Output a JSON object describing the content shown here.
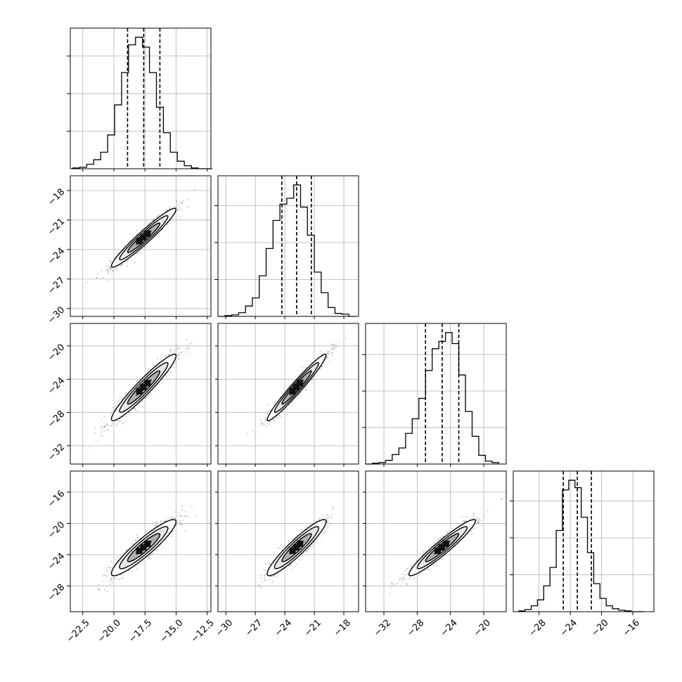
{
  "chart_data": {
    "type": "corner",
    "grid": true,
    "legend": "none",
    "colors": {
      "line": "#000000",
      "grid": "#b0b0b0",
      "points": "#666666"
    },
    "params": [
      {
        "range": [
          -23.5,
          -12.2
        ],
        "ticks": [
          -22.5,
          -20.0,
          -17.5,
          -15.0,
          -12.5
        ],
        "tick_labels": [
          "−22.5",
          "−20.0",
          "−17.5",
          "−15.0",
          "−12.5"
        ],
        "median": -17.6,
        "q16": -18.9,
        "q84": -16.3
      },
      {
        "range": [
          -30.8,
          -16.5
        ],
        "ticks": [
          -30,
          -27,
          -24,
          -21,
          -18
        ],
        "tick_labels": [
          "−30",
          "−27",
          "−24",
          "−21",
          "−18"
        ],
        "median": -22.8,
        "q16": -24.3,
        "q84": -21.3
      },
      {
        "range": [
          -34.2,
          -17.3
        ],
        "ticks": [
          -32,
          -28,
          -24,
          -20
        ],
        "tick_labels": [
          "−32",
          "−28",
          "−24",
          "−20"
        ],
        "median": -25.0,
        "q16": -27.0,
        "q84": -23.0
      },
      {
        "range": [
          -31.3,
          -13.3
        ],
        "ticks": [
          -28,
          -24,
          -20,
          -16
        ],
        "tick_labels": [
          "−28",
          "−24",
          "−20",
          "−16"
        ],
        "median": -23.1,
        "q16": -24.9,
        "q84": -21.3
      }
    ],
    "histograms": [
      {
        "bins": [
          -23.3,
          -22.74,
          -22.18,
          -21.62,
          -21.06,
          -20.5,
          -19.94,
          -19.38,
          -18.82,
          -18.26,
          -17.7,
          -17.14,
          -16.58,
          -16.02,
          -15.46,
          -14.9,
          -14.34,
          -13.78,
          -13.22,
          -12.66,
          -12.1
        ],
        "counts": [
          1,
          2,
          6,
          12,
          22,
          45,
          85,
          128,
          165,
          175,
          162,
          128,
          82,
          48,
          22,
          10,
          4,
          1,
          0,
          0
        ]
      },
      {
        "bins": [
          -30.8,
          -30.1,
          -29.4,
          -28.7,
          -28.0,
          -27.3,
          -26.6,
          -25.9,
          -25.2,
          -24.5,
          -23.8,
          -23.1,
          -22.4,
          -21.7,
          -21.0,
          -20.3,
          -19.6,
          -18.9,
          -18.2,
          -17.5,
          -16.8
        ],
        "counts": [
          0,
          1,
          2,
          5,
          14,
          25,
          55,
          92,
          130,
          152,
          160,
          178,
          148,
          110,
          60,
          32,
          12,
          4,
          3,
          0
        ]
      },
      {
        "bins": [
          -34.2,
          -33.4,
          -32.6,
          -31.8,
          -31.0,
          -30.2,
          -29.4,
          -28.6,
          -27.8,
          -27.0,
          -26.2,
          -25.4,
          -24.6,
          -23.8,
          -23.0,
          -22.2,
          -21.4,
          -20.6,
          -19.8,
          -19.0,
          -18.2
        ],
        "counts": [
          0,
          1,
          2,
          5,
          13,
          22,
          42,
          62,
          90,
          128,
          158,
          168,
          180,
          165,
          122,
          72,
          38,
          12,
          4,
          2
        ]
      },
      {
        "bins": [
          -30.6,
          -29.8,
          -29.0,
          -28.2,
          -27.4,
          -26.6,
          -25.8,
          -25.0,
          -24.2,
          -23.4,
          -22.6,
          -21.8,
          -21.0,
          -20.2,
          -19.4,
          -18.6,
          -17.8,
          -17.0,
          -16.2,
          -15.4,
          -14.6
        ],
        "counts": [
          1,
          3,
          8,
          16,
          35,
          60,
          110,
          165,
          178,
          168,
          128,
          80,
          38,
          18,
          8,
          4,
          2,
          1,
          0,
          0
        ]
      }
    ],
    "pairs": [
      {
        "x_param": 0,
        "y_param": 1,
        "mean": [
          -17.6,
          -22.8
        ],
        "sd": [
          1.3,
          1.5
        ],
        "rho": 0.96
      },
      {
        "x_param": 0,
        "y_param": 2,
        "mean": [
          -17.6,
          -25.0
        ],
        "sd": [
          1.3,
          2.0
        ],
        "rho": 0.95
      },
      {
        "x_param": 1,
        "y_param": 2,
        "mean": [
          -22.8,
          -25.0
        ],
        "sd": [
          1.5,
          2.0
        ],
        "rho": 0.97
      },
      {
        "x_param": 0,
        "y_param": 3,
        "mean": [
          -17.6,
          -23.1
        ],
        "sd": [
          1.3,
          1.8
        ],
        "rho": 0.92
      },
      {
        "x_param": 1,
        "y_param": 3,
        "mean": [
          -22.8,
          -23.1
        ],
        "sd": [
          1.5,
          1.8
        ],
        "rho": 0.93
      },
      {
        "x_param": 2,
        "y_param": 3,
        "mean": [
          -25.0,
          -23.1
        ],
        "sd": [
          2.0,
          1.8
        ],
        "rho": 0.95
      }
    ],
    "contour_levels_sigma": [
      0.5,
      1.0,
      1.5,
      2.0
    ]
  }
}
